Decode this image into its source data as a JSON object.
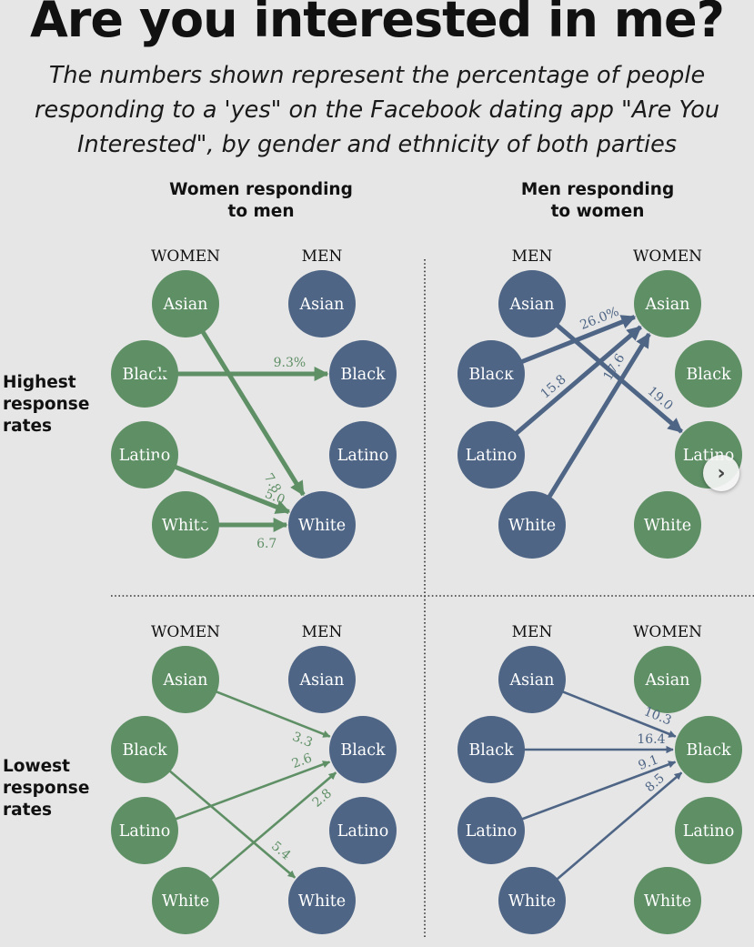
{
  "title": "Are you interested in me?",
  "subtitle": "The numbers shown represent the percentage of people responding to a 'yes\" on the Facebook dating app \"Are You Interested\", by gender and ethnicity of both parties",
  "colors": {
    "women": "#5e8f65",
    "men": "#4e6585",
    "background": "#e6e6e6"
  },
  "row_labels": [
    {
      "id": "highest",
      "lines": [
        "Highest",
        "response",
        "rates"
      ]
    },
    {
      "id": "lowest",
      "lines": [
        "Lowest",
        "response",
        "rates"
      ]
    }
  ],
  "col_headers": [
    {
      "id": "women-to-men",
      "lines": [
        "Women responding",
        "to men"
      ]
    },
    {
      "id": "men-to-women",
      "lines": [
        "Men responding",
        "to women"
      ]
    }
  ],
  "panels": [
    {
      "id": "highest-women-to-men",
      "left_header": "WOMEN",
      "right_header": "MEN",
      "left_group": "women",
      "right_group": "men",
      "left_nodes": [
        "Asian",
        "Black",
        "Latino",
        "White"
      ],
      "right_nodes": [
        "Asian",
        "Black",
        "Latino",
        "White"
      ],
      "arrows": [
        {
          "from": "Black",
          "to": "Black",
          "label": "9.3%"
        },
        {
          "from": "Asian",
          "to": "White",
          "label": "7.8"
        },
        {
          "from": "Latino",
          "to": "White",
          "label": "5.0"
        },
        {
          "from": "White",
          "to": "White",
          "label": "6.7"
        }
      ]
    },
    {
      "id": "highest-men-to-women",
      "left_header": "MEN",
      "right_header": "WOMEN",
      "left_group": "men",
      "right_group": "women",
      "left_nodes": [
        "Asian",
        "Black",
        "Latino",
        "White"
      ],
      "right_nodes": [
        "Asian",
        "Black",
        "Latino",
        "White"
      ],
      "arrows": [
        {
          "from": "Black",
          "to": "Asian",
          "label": "26.0%"
        },
        {
          "from": "Latino",
          "to": "Asian",
          "label": "15.8"
        },
        {
          "from": "White",
          "to": "Asian",
          "label": "17.6"
        },
        {
          "from": "Asian",
          "to": "Latino",
          "label": "19.0"
        }
      ]
    },
    {
      "id": "lowest-women-to-men",
      "left_header": "WOMEN",
      "right_header": "MEN",
      "left_group": "women",
      "right_group": "men",
      "left_nodes": [
        "Asian",
        "Black",
        "Latino",
        "White"
      ],
      "right_nodes": [
        "Asian",
        "Black",
        "Latino",
        "White"
      ],
      "arrows": [
        {
          "from": "Asian",
          "to": "Black",
          "label": "3.3"
        },
        {
          "from": "Latino",
          "to": "Black",
          "label": "2.6"
        },
        {
          "from": "White",
          "to": "Black",
          "label": "2.8"
        },
        {
          "from": "Black",
          "to": "White",
          "label": "5.4"
        }
      ]
    },
    {
      "id": "lowest-men-to-women",
      "left_header": "MEN",
      "right_header": "WOMEN",
      "left_group": "men",
      "right_group": "women",
      "left_nodes": [
        "Asian",
        "Black",
        "Latino",
        "White"
      ],
      "right_nodes": [
        "Asian",
        "Black",
        "Latino",
        "White"
      ],
      "arrows": [
        {
          "from": "Asian",
          "to": "Black",
          "label": "10.3"
        },
        {
          "from": "Black",
          "to": "Black",
          "label": "16.4"
        },
        {
          "from": "Latino",
          "to": "Black",
          "label": "9.1"
        },
        {
          "from": "White",
          "to": "Black",
          "label": "8.5"
        }
      ]
    }
  ],
  "next_button": {
    "icon": "chevron-right-icon",
    "glyph": "›"
  }
}
